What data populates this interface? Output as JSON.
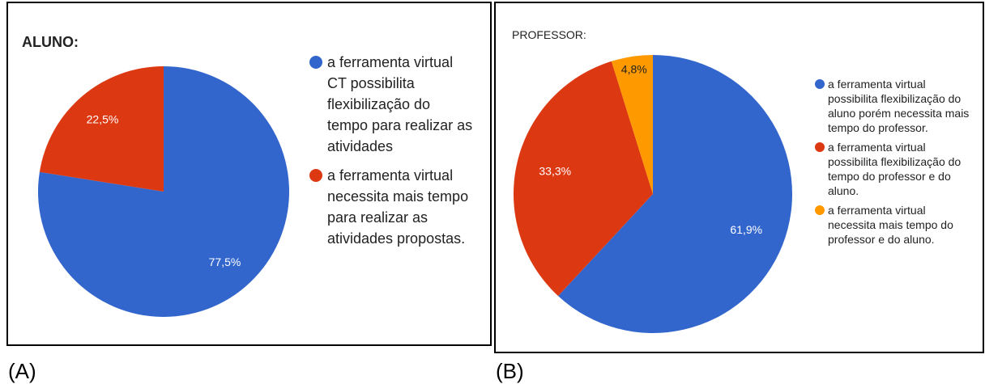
{
  "chart_data": [
    {
      "type": "pie",
      "title": "ALUNO:",
      "caption": "(A)",
      "categories": [
        "a ferramenta virtual CT possibilita flexibilização do tempo para realizar as atividades",
        "a ferramenta virtual necessita mais tempo para realizar as atividades propostas."
      ],
      "values": [
        77.5,
        22.5
      ],
      "value_labels": [
        "77,5%",
        "22,5%"
      ],
      "colors": [
        "#3366cc",
        "#dc3912"
      ],
      "label_colors": [
        "#ffffff",
        "#ffffff"
      ],
      "legend": "right"
    },
    {
      "type": "pie",
      "title": "PROFESSOR:",
      "caption": "(B)",
      "categories": [
        "a ferramenta virtual possibilita flexibilização do aluno porém necessita mais tempo do professor.",
        "a ferramenta virtual possibilita flexibilização do tempo do professor e do aluno.",
        "a ferramenta virtual necessita mais tempo do professor e do aluno."
      ],
      "values": [
        61.9,
        33.3,
        4.8
      ],
      "value_labels": [
        "61,9%",
        "33,3%",
        "4,8%"
      ],
      "colors": [
        "#3366cc",
        "#dc3912",
        "#ff9900"
      ],
      "label_colors": [
        "#ffffff",
        "#ffffff",
        "#222222"
      ],
      "legend": "right"
    }
  ]
}
